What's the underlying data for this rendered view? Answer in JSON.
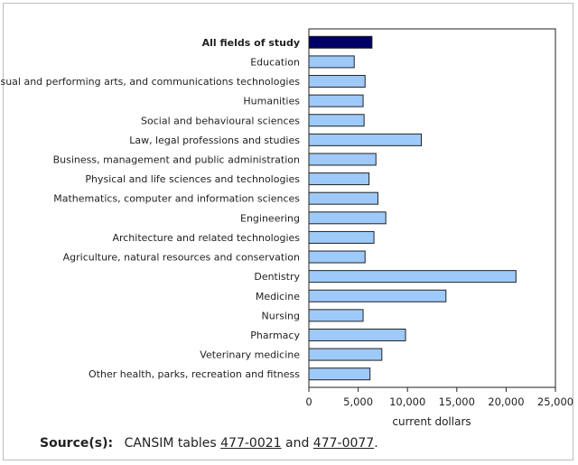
{
  "chart_data": {
    "type": "bar",
    "orientation": "horizontal",
    "categories": [
      "All fields of study",
      "Education",
      "Visual and performing arts, and communications technologies",
      "Humanities",
      "Social and behavioural sciences",
      "Law, legal professions and studies",
      "Business, management and public administration",
      "Physical and life sciences and technologies",
      "Mathematics, computer and information sciences",
      "Engineering",
      "Architecture and related technologies",
      "Agriculture, natural resources and conservation",
      "Dentistry",
      "Medicine",
      "Nursing",
      "Pharmacy",
      "Veterinary medicine",
      "Other health, parks, recreation and fitness"
    ],
    "values": [
      6400,
      4600,
      5700,
      5500,
      5600,
      11400,
      6800,
      6100,
      7000,
      7800,
      6600,
      5700,
      21000,
      13900,
      5500,
      9800,
      7400,
      6200
    ],
    "highlight_index": 0,
    "xlabel": "current dollars",
    "xlim": [
      0,
      25000
    ],
    "xticks": [
      0,
      5000,
      10000,
      15000,
      20000,
      25000
    ],
    "xtick_labels": [
      "0",
      "5,000",
      "10,000",
      "15,000",
      "20,000",
      "25,000"
    ],
    "colors": {
      "highlight": "#000066",
      "bar": "#9ecaf9",
      "bar_stroke": "#222222"
    }
  },
  "source": {
    "label": "Source(s):",
    "text_before": "CANSIM tables",
    "link1": "477-0021",
    "text_middle": "and",
    "link2": "477-0077",
    "text_after": "."
  }
}
